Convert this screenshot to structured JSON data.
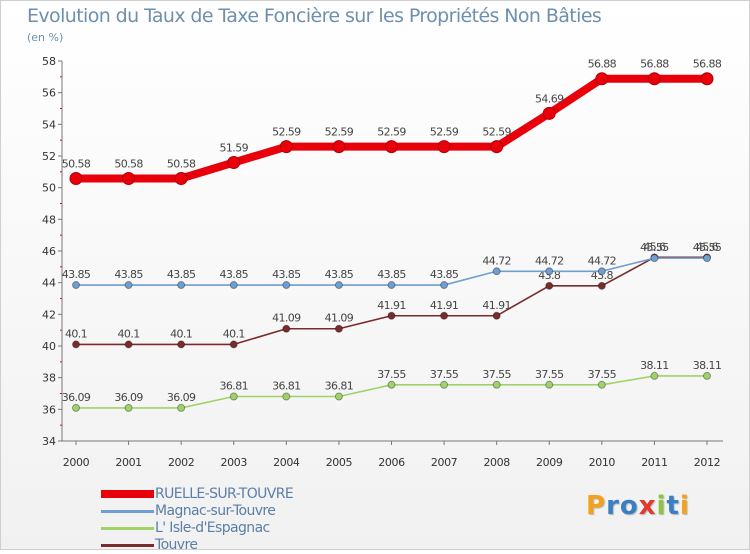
{
  "title": "Evolution du Taux de Taxe Foncière sur les Propriétés Non Bâties",
  "unit_label": "(en %)",
  "brand": {
    "text": "Proxiti",
    "letter_colors": [
      "#f2a21b",
      "#3a7fc4",
      "#3a7fc4",
      "#e2392f",
      "#8cc63e",
      "#3a7fc4",
      "#f2a21b"
    ]
  },
  "chart_data": {
    "type": "line",
    "title": "Evolution du Taux de Taxe Foncière sur les Propriétés Non Bâties",
    "ylabel": "(en %)",
    "xlabel": "",
    "categories": [
      "2000",
      "2001",
      "2002",
      "2003",
      "2004",
      "2005",
      "2006",
      "2007",
      "2008",
      "2009",
      "2010",
      "2011",
      "2012"
    ],
    "ylim": [
      34,
      58
    ],
    "yticks": [
      "34",
      "36",
      "38",
      "40",
      "42",
      "44",
      "46",
      "48",
      "50",
      "52",
      "54",
      "56",
      "58"
    ],
    "ytick_values": [
      34,
      36,
      38,
      40,
      42,
      44,
      46,
      48,
      50,
      52,
      54,
      56,
      58
    ],
    "grid": false,
    "legend_position": "bottom-left",
    "series": [
      {
        "name": "RUELLE-SUR-TOUVRE",
        "color": "#e8000b",
        "values": [
          50.58,
          50.58,
          50.58,
          51.59,
          52.59,
          52.59,
          52.59,
          52.59,
          52.59,
          54.69,
          56.88,
          56.88,
          56.88
        ],
        "labels": [
          "50.58",
          "50.58",
          "50.58",
          "51.59",
          "52.59",
          "52.59",
          "52.59",
          "52.59",
          "52.59",
          "54.69",
          "56.88",
          "56.88",
          "56.88"
        ]
      },
      {
        "name": "Magnac-sur-Touvre",
        "color": "#6f9fd0",
        "values": [
          43.85,
          43.85,
          43.85,
          43.85,
          43.85,
          43.85,
          43.85,
          43.85,
          44.72,
          44.72,
          44.72,
          45.55,
          45.55
        ],
        "labels": [
          "43.85",
          "43.85",
          "43.85",
          "43.85",
          "43.85",
          "43.85",
          "43.85",
          "43.85",
          "44.72",
          "44.72",
          "44.72",
          "45.55",
          "45.55"
        ]
      },
      {
        "name": "L' Isle-d'Espagnac",
        "color": "#9fd36a",
        "values": [
          36.09,
          36.09,
          36.09,
          36.81,
          36.81,
          36.81,
          37.55,
          37.55,
          37.55,
          37.55,
          37.55,
          38.11,
          38.11
        ],
        "labels": [
          "36.09",
          "36.09",
          "36.09",
          "36.81",
          "36.81",
          "36.81",
          "37.55",
          "37.55",
          "37.55",
          "37.55",
          "37.55",
          "38.11",
          "38.11"
        ]
      },
      {
        "name": "Touvre",
        "color": "#7a2b2b",
        "values": [
          40.1,
          40.1,
          40.1,
          40.1,
          41.09,
          41.09,
          41.91,
          41.91,
          41.91,
          43.8,
          43.8,
          45.6,
          45.6
        ],
        "labels": [
          "40.1",
          "40.1",
          "40.1",
          "40.1",
          "41.09",
          "41.09",
          "41.91",
          "41.91",
          "41.91",
          "43.8",
          "43.8",
          "45.6",
          "45.6"
        ]
      }
    ]
  }
}
